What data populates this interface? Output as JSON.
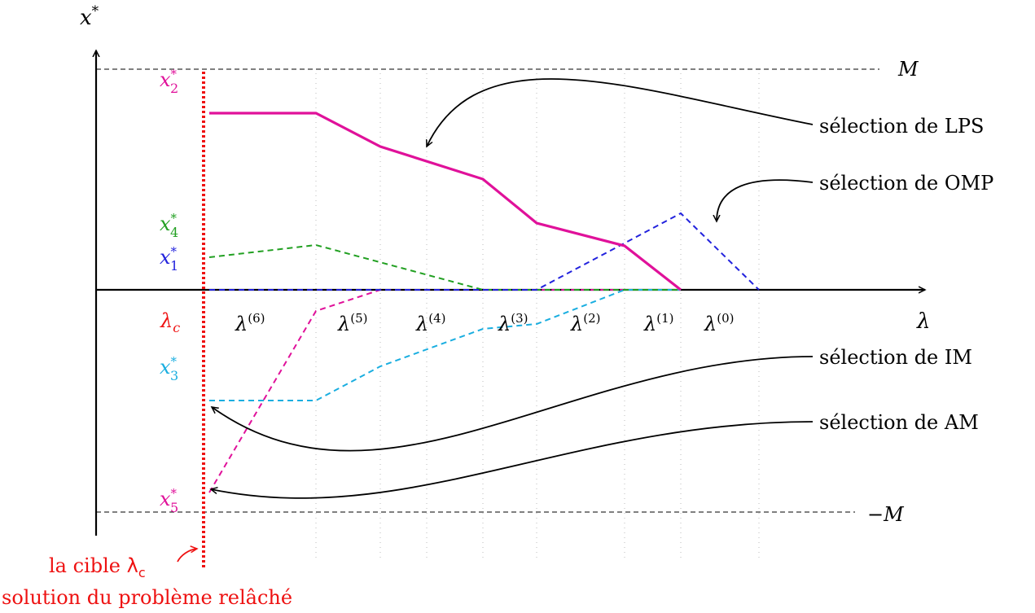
{
  "axes": {
    "y_label": "x",
    "y_label_sup": "*",
    "x_label": "λ",
    "M_label": "M",
    "minus_M_label": "−M"
  },
  "lambda_c_label": {
    "base": "λ",
    "sub": "c"
  },
  "lambda_ticks": [
    {
      "base": "λ",
      "sup": "(6)"
    },
    {
      "base": "λ",
      "sup": "(5)"
    },
    {
      "base": "λ",
      "sup": "(4)"
    },
    {
      "base": "λ",
      "sup": "(3)"
    },
    {
      "base": "λ",
      "sup": "(2)"
    },
    {
      "base": "λ",
      "sup": "(1)"
    },
    {
      "base": "λ",
      "sup": "(0)"
    }
  ],
  "variables": [
    {
      "base": "x",
      "sup": "*",
      "sub": "2",
      "color": "#e0119a"
    },
    {
      "base": "x",
      "sup": "*",
      "sub": "4",
      "color": "#22a022"
    },
    {
      "base": "x",
      "sup": "*",
      "sub": "1",
      "color": "#2222dd"
    },
    {
      "base": "x",
      "sup": "*",
      "sub": "3",
      "color": "#1aaee0"
    },
    {
      "base": "x",
      "sup": "*",
      "sub": "5",
      "color": "#e0119a"
    }
  ],
  "annotations": {
    "lps": "sélection de LPS",
    "omp": "sélection de OMP",
    "im": "sélection de IM",
    "am": "sélection de AM"
  },
  "target": {
    "line1": "la cible ",
    "symbol": "λ",
    "sub": "c",
    "line2": "solution du problème relâché"
  },
  "colors": {
    "lps": "#e0119a",
    "omp": "#2222dd",
    "x4": "#22a022",
    "x3": "#1aaee0",
    "x5": "#e0119a",
    "target": "#ee1111",
    "axis": "#000000"
  }
}
